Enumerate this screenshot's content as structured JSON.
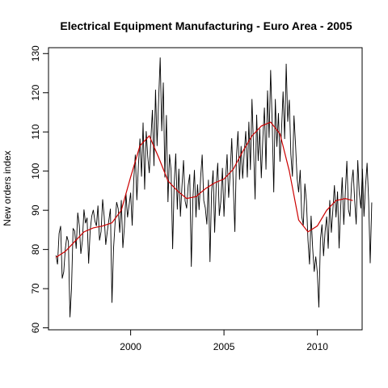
{
  "chart_data": {
    "type": "line",
    "title": "Electrical Equipment Manufacturing - Euro Area - 2005",
    "xlabel": "",
    "ylabel": "New orders index",
    "xlim": [
      1995.6,
      2012.4
    ],
    "ylim": [
      59.5,
      131.5
    ],
    "xticks": [
      2000,
      2005,
      2010
    ],
    "yticks": [
      60,
      70,
      80,
      90,
      100,
      110,
      120,
      130
    ],
    "grid": false,
    "colors": {
      "raw": "#000000",
      "trend": "#cc0000"
    },
    "series": [
      {
        "role": "monthly",
        "x_start": 1996.0,
        "x_step": 0.08333,
        "values": [
          78.5,
          76.2,
          84.1,
          86.0,
          72.6,
          74.3,
          80.1,
          83.4,
          82.0,
          62.7,
          70.1,
          85.3,
          84.8,
          80.2,
          89.4,
          86.1,
          78.9,
          82.3,
          90.2,
          86.7,
          88.1,
          76.4,
          84.9,
          88.5,
          90.1,
          87.3,
          86.0,
          91.2,
          82.3,
          84.6,
          92.8,
          88.4,
          81.2,
          84.6,
          87.5,
          90.4,
          66.4,
          80.2,
          86.7,
          92.1,
          90.4,
          84.3,
          92.6,
          80.4,
          85.8,
          94.3,
          88.2,
          91.3,
          94.5,
          86.1,
          97.8,
          104.2,
          92.6,
          101.4,
          108.3,
          98.6,
          112.4,
          95.3,
          110.2,
          103.7,
          99.5,
          108.2,
          115.6,
          101.3,
          120.8,
          106.4,
          118.2,
          129.0,
          110.2,
          122.6,
          98.4,
          114.3,
          92.1,
          104.3,
          100.2,
          80.1,
          96.8,
          104.5,
          90.2,
          100.6,
          88.4,
          96.2,
          102.8,
          92.4,
          90.5,
          96.4,
          99.2,
          75.6,
          92.8,
          100.3,
          88.2,
          96.6,
          90.1,
          98.4,
          104.2,
          92.5,
          90.6,
          86.4,
          97.8,
          76.8,
          94.6,
          100.2,
          84.3,
          96.4,
          102.1,
          88.6,
          92.4,
          100.8,
          88.4,
          97.6,
          104.3,
          93.2,
          99.5,
          108.4,
          96.2,
          84.5,
          103.6,
          110.2,
          97.8,
          106.4,
          98.1,
          104.6,
          110.2,
          98.4,
          112.6,
          100.3,
          118.4,
          106.2,
          92.8,
          114.4,
          102.6,
          110.8,
          98.2,
          108.6,
          116.2,
          100.4,
          120.6,
          108.5,
          125.8,
          112.3,
          94.6,
          118.4,
          106.2,
          114.8,
          102.4,
          110.6,
          120.3,
          108.2,
          127.4,
          112.6,
          118.2,
          104.3,
          98.6,
          114.2,
          106.8,
          98.2,
          94.6,
          100.3,
          88.4,
          86.2,
          96.8,
          92.3,
          82.4,
          76.2,
          88.6,
          80.4,
          74.3,
          78.2,
          74.1,
          65.2,
          82.6,
          86.4,
          78.3,
          84.6,
          88.4,
          80.2,
          92.6,
          84.3,
          90.1,
          96.4,
          88.2,
          94.8,
          80.3,
          90.6,
          98.4,
          86.3,
          94.6,
          102.6,
          90.2,
          88.4,
          96.8,
          100.4,
          92.6,
          86.4,
          102.8,
          94.2,
          90.5,
          100.6,
          88.4,
          96.3,
          102.1,
          92.4,
          76.5,
          92.0
        ]
      },
      {
        "role": "trend",
        "x": [
          1996.0,
          1996.5,
          1997.0,
          1997.5,
          1998.0,
          1998.5,
          1999.0,
          1999.5,
          2000.0,
          2000.5,
          2001.0,
          2001.5,
          2002.0,
          2002.5,
          2003.0,
          2003.5,
          2004.0,
          2004.5,
          2005.0,
          2005.5,
          2006.0,
          2006.5,
          2007.0,
          2007.5,
          2008.0,
          2008.5,
          2009.0,
          2009.5,
          2010.0,
          2010.5,
          2011.0,
          2011.5,
          2011.9
        ],
        "values": [
          78.0,
          79.5,
          82.0,
          84.5,
          85.5,
          86.0,
          86.8,
          90.0,
          98.5,
          106.5,
          109.0,
          103.5,
          97.5,
          95.0,
          93.0,
          93.5,
          95.5,
          97.0,
          98.0,
          100.5,
          105.0,
          109.0,
          111.5,
          112.5,
          109.5,
          100.0,
          87.5,
          84.5,
          86.0,
          90.0,
          92.5,
          93.0,
          92.5
        ]
      }
    ]
  }
}
